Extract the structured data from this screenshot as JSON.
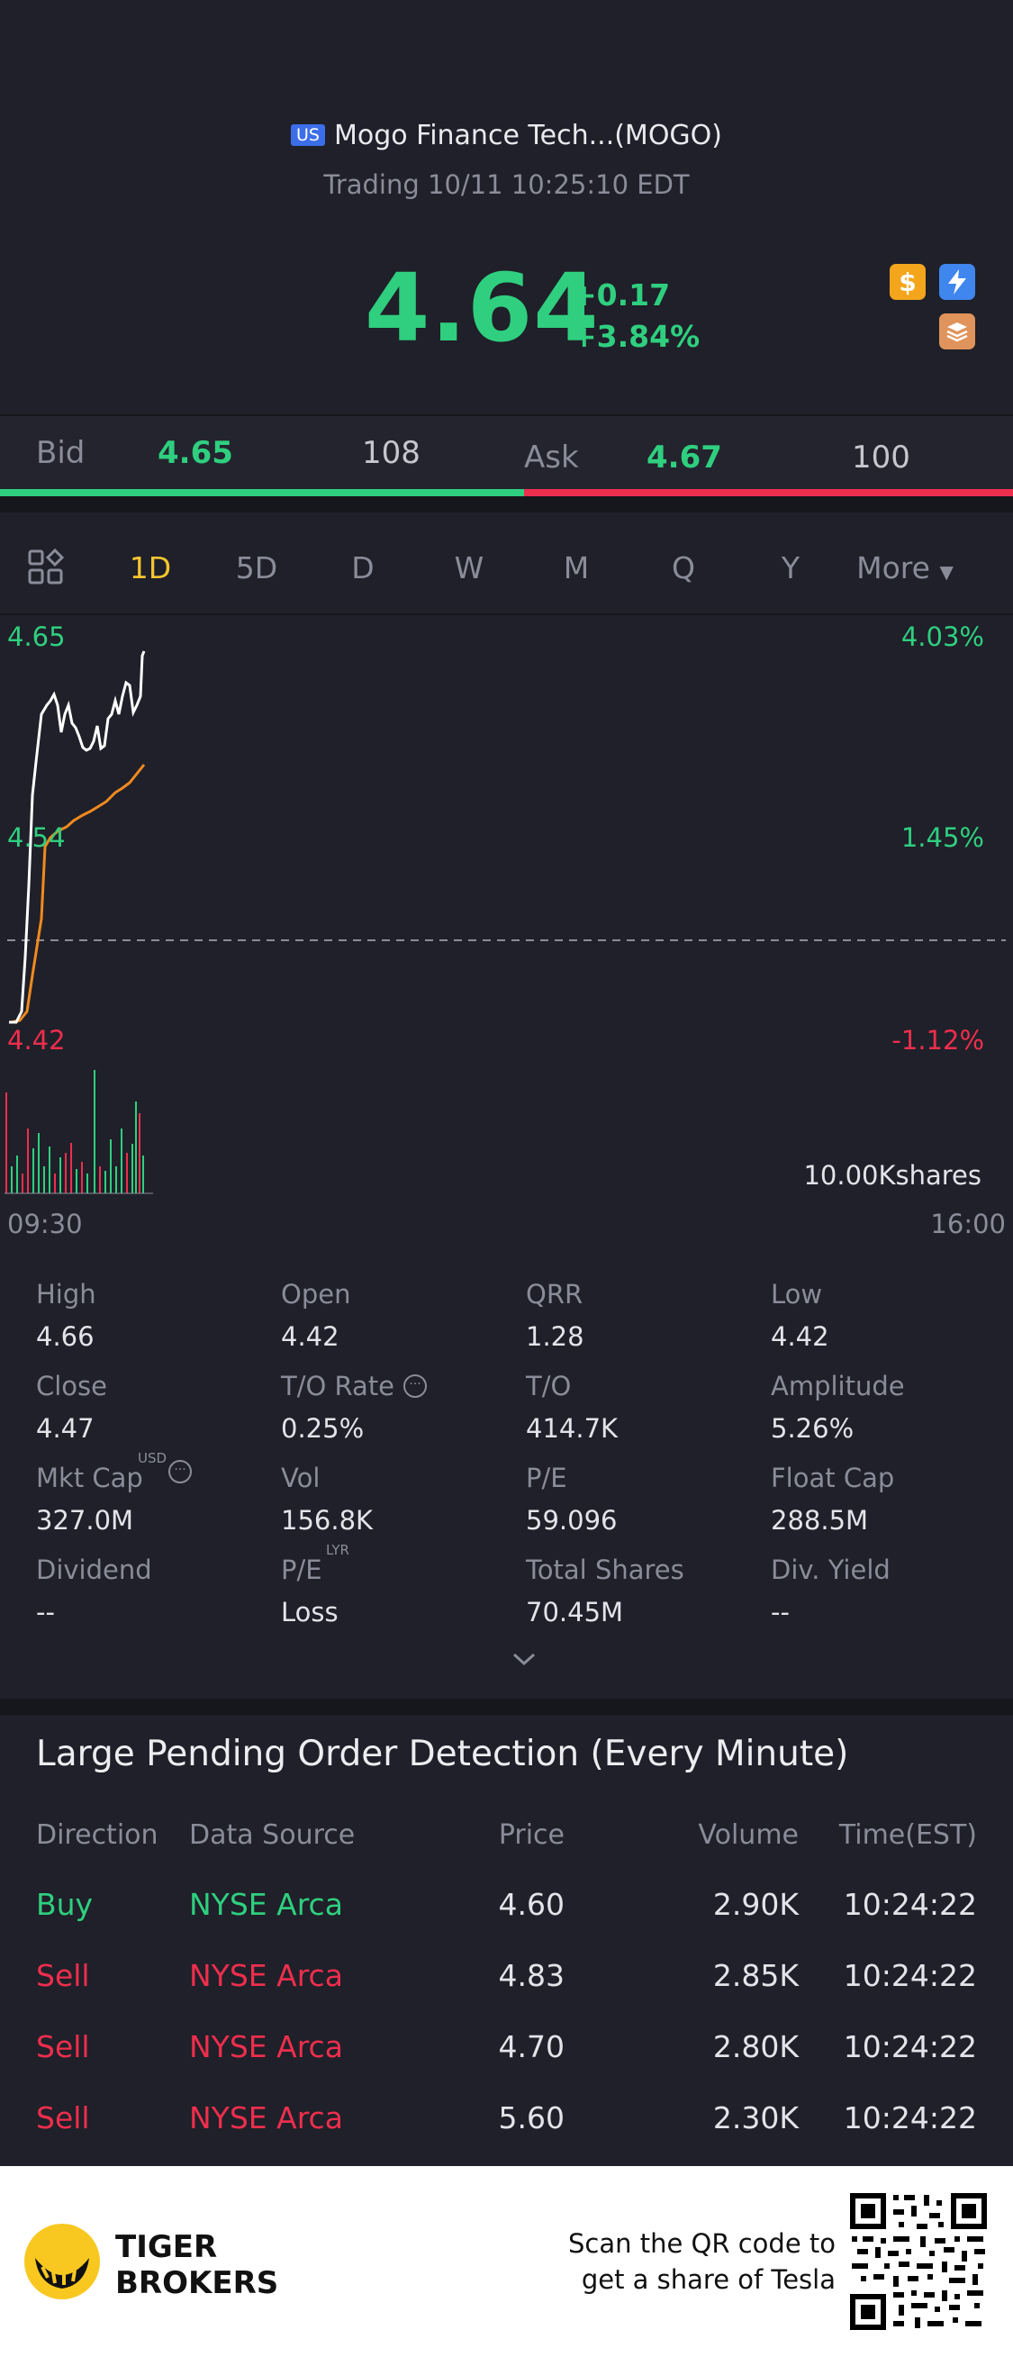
{
  "header": {
    "market_badge": "US",
    "title": "Mogo Finance Tech...(MOGO)",
    "trading": "Trading 10/11 10:25:10 EDT"
  },
  "quote": {
    "price": "4.64",
    "change": "+0.17",
    "change_pct": "+3.84%",
    "icons": [
      "dollar-icon",
      "lightning-icon",
      "stack-icon"
    ]
  },
  "bid_ask": {
    "bid_label": "Bid",
    "bid_price": "4.65",
    "bid_volume": "108",
    "ask_label": "Ask",
    "ask_price": "4.67",
    "ask_volume": "100"
  },
  "tabs": [
    "1D",
    "5D",
    "D",
    "W",
    "M",
    "Q",
    "Y",
    "More"
  ],
  "active_tab": "1D",
  "chart": {
    "price_high": "4.65",
    "price_mid": "4.54",
    "price_low": "4.42",
    "pct_high": "4.03%",
    "pct_mid": "1.45%",
    "pct_low": "-1.12%",
    "volume_label": "10.00Kshares",
    "time_start": "09:30",
    "time_end": "16:00"
  },
  "stats": [
    {
      "label": "High",
      "value": "4.66"
    },
    {
      "label": "Open",
      "value": "4.42"
    },
    {
      "label": "QRR",
      "value": "1.28"
    },
    {
      "label": "Low",
      "value": "4.42"
    },
    {
      "label": "Close",
      "value": "4.47"
    },
    {
      "label": "T/O Rate",
      "value": "0.25%"
    },
    {
      "label": "T/O",
      "value": "414.7K"
    },
    {
      "label": "Amplitude",
      "value": "5.26%"
    },
    {
      "label": "Mkt Cap",
      "value": "327.0M"
    },
    {
      "label": "Vol",
      "value": "156.8K"
    },
    {
      "label": "P/E",
      "value": "59.096"
    },
    {
      "label": "Float Cap",
      "value": "288.5M"
    },
    {
      "label": "Dividend",
      "value": "--"
    },
    {
      "label": "P/E",
      "value": "Loss"
    },
    {
      "label": "Total Shares",
      "value": "70.45M"
    },
    {
      "label": "Div. Yield",
      "value": "--"
    }
  ],
  "stat_superscripts": {
    "mkt_cap": "USD",
    "pe_lyr": "LYR"
  },
  "large_orders": {
    "title": "Large Pending Order Detection (Every Minute)",
    "headers": [
      "Direction",
      "Data Source",
      "Price",
      "Volume",
      "Time(EST)"
    ],
    "rows": [
      {
        "direction": "Buy",
        "source": "NYSE Arca",
        "price": "4.60",
        "volume": "2.90K",
        "time": "10:24:22"
      },
      {
        "direction": "Sell",
        "source": "NYSE Arca",
        "price": "4.83",
        "volume": "2.85K",
        "time": "10:24:22"
      },
      {
        "direction": "Sell",
        "source": "NYSE Arca",
        "price": "4.70",
        "volume": "2.80K",
        "time": "10:24:22"
      },
      {
        "direction": "Sell",
        "source": "NYSE Arca",
        "price": "5.60",
        "volume": "2.30K",
        "time": "10:24:22"
      }
    ]
  },
  "footer": {
    "brand_line1": "TIGER",
    "brand_line2": "BROKERS",
    "scan_line1": "Scan the QR code to",
    "scan_line2": "get a share of Tesla"
  },
  "colors": {
    "up": "#2fcf7f",
    "down": "#ee2e4d",
    "accent": "#f4c52f",
    "bg": "#1f2029"
  }
}
